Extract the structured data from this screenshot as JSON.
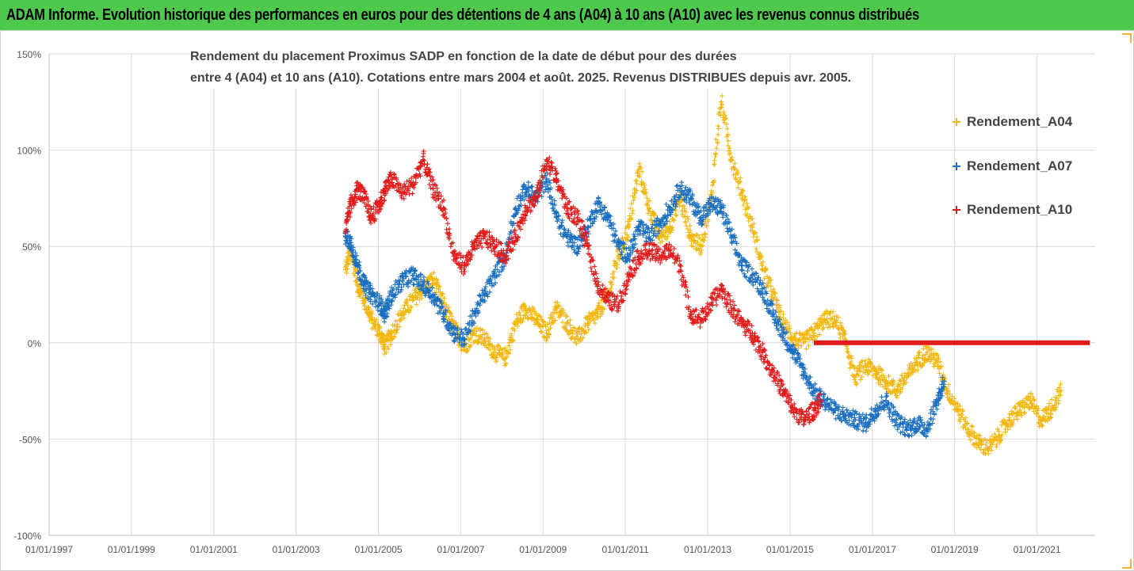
{
  "header": {
    "banner_text": "ADAM Informe. Evolution historique des performances en euros pour des détentions de 4 ans (A04) à 10 ans (A10) avec les revenus connus distribués"
  },
  "chart_data": {
    "type": "scatter",
    "title_lines": [
      "Rendement du placement Proximus SADP en fonction de la date de début pour des durées",
      "entre 4 (A04) et 10 ans (A10). Cotations entre mars 2004 et août. 2025. Revenus DISTRIBUES depuis avr. 2005."
    ],
    "xlabel": "",
    "ylabel": "",
    "x_ticks": [
      "01/01/1997",
      "01/01/1999",
      "01/01/2001",
      "01/01/2003",
      "01/01/2005",
      "01/01/2007",
      "01/01/2009",
      "01/01/2011",
      "01/01/2013",
      "01/01/2015",
      "01/01/2017",
      "01/01/2019",
      "01/01/2021"
    ],
    "x_range": [
      "1997-01-01",
      "2022-06-01"
    ],
    "y_ticks": [
      "-100%",
      "-50%",
      "0%",
      "50%",
      "100%",
      "150%"
    ],
    "y_tick_values": [
      -100,
      -50,
      0,
      50,
      100,
      150
    ],
    "y_range": [
      -100,
      150
    ],
    "grid": "horizontal and vertical",
    "legend_position": "right",
    "series": [
      {
        "name": "Rendement_A04",
        "color": "#f2b711",
        "points": [
          [
            "2004-03-15",
            38
          ],
          [
            "2004-05-01",
            48
          ],
          [
            "2004-07-01",
            30
          ],
          [
            "2004-09-01",
            22
          ],
          [
            "2004-11-01",
            12
          ],
          [
            "2005-01-15",
            5
          ],
          [
            "2005-03-01",
            -2
          ],
          [
            "2005-05-01",
            5
          ],
          [
            "2005-08-01",
            15
          ],
          [
            "2005-11-01",
            22
          ],
          [
            "2006-02-01",
            28
          ],
          [
            "2006-05-01",
            33
          ],
          [
            "2006-08-01",
            20
          ],
          [
            "2006-11-01",
            8
          ],
          [
            "2007-02-01",
            -2
          ],
          [
            "2007-05-01",
            5
          ],
          [
            "2007-08-01",
            2
          ],
          [
            "2007-11-01",
            -5
          ],
          [
            "2008-02-01",
            -8
          ],
          [
            "2008-05-01",
            10
          ],
          [
            "2008-08-01",
            18
          ],
          [
            "2008-11-01",
            12
          ],
          [
            "2009-02-01",
            5
          ],
          [
            "2009-05-01",
            18
          ],
          [
            "2009-08-01",
            10
          ],
          [
            "2009-11-01",
            2
          ],
          [
            "2010-02-01",
            10
          ],
          [
            "2010-05-01",
            15
          ],
          [
            "2010-08-01",
            25
          ],
          [
            "2010-11-01",
            45
          ],
          [
            "2011-02-01",
            60
          ],
          [
            "2011-05-01",
            90
          ],
          [
            "2011-08-01",
            70
          ],
          [
            "2011-11-01",
            55
          ],
          [
            "2012-02-01",
            60
          ],
          [
            "2012-05-01",
            75
          ],
          [
            "2012-08-01",
            55
          ],
          [
            "2012-11-01",
            50
          ],
          [
            "2013-02-01",
            75
          ],
          [
            "2013-05-01",
            125
          ],
          [
            "2013-08-01",
            95
          ],
          [
            "2013-11-01",
            78
          ],
          [
            "2014-02-01",
            60
          ],
          [
            "2014-05-01",
            40
          ],
          [
            "2014-08-01",
            25
          ],
          [
            "2014-11-01",
            10
          ],
          [
            "2015-02-01",
            2
          ],
          [
            "2015-05-01",
            0
          ],
          [
            "2015-08-01",
            5
          ],
          [
            "2015-11-01",
            12
          ],
          [
            "2016-02-01",
            12
          ],
          [
            "2016-05-01",
            2
          ],
          [
            "2016-08-01",
            -18
          ],
          [
            "2016-11-01",
            -12
          ],
          [
            "2017-02-01",
            -15
          ],
          [
            "2017-05-01",
            -20
          ],
          [
            "2017-08-01",
            -25
          ],
          [
            "2017-11-01",
            -18
          ],
          [
            "2018-02-01",
            -10
          ],
          [
            "2018-05-01",
            -5
          ],
          [
            "2018-08-01",
            -10
          ],
          [
            "2018-11-01",
            -25
          ],
          [
            "2019-02-01",
            -35
          ],
          [
            "2019-05-01",
            -45
          ],
          [
            "2019-08-01",
            -52
          ],
          [
            "2019-11-01",
            -55
          ],
          [
            "2020-02-01",
            -48
          ],
          [
            "2020-05-01",
            -40
          ],
          [
            "2020-08-01",
            -35
          ],
          [
            "2020-11-01",
            -30
          ],
          [
            "2021-02-01",
            -40
          ],
          [
            "2021-05-01",
            -35
          ],
          [
            "2021-08-01",
            -25
          ]
        ]
      },
      {
        "name": "Rendement_A07",
        "color": "#1a6fc0",
        "points": [
          [
            "2004-03-15",
            55
          ],
          [
            "2004-05-01",
            52
          ],
          [
            "2004-07-01",
            40
          ],
          [
            "2004-09-01",
            30
          ],
          [
            "2004-11-01",
            25
          ],
          [
            "2005-01-15",
            20
          ],
          [
            "2005-03-01",
            15
          ],
          [
            "2005-05-01",
            25
          ],
          [
            "2005-08-01",
            32
          ],
          [
            "2005-11-01",
            35
          ],
          [
            "2006-02-01",
            30
          ],
          [
            "2006-05-01",
            25
          ],
          [
            "2006-08-01",
            15
          ],
          [
            "2006-11-01",
            5
          ],
          [
            "2007-02-01",
            2
          ],
          [
            "2007-05-01",
            15
          ],
          [
            "2007-08-01",
            25
          ],
          [
            "2007-11-01",
            35
          ],
          [
            "2008-02-01",
            45
          ],
          [
            "2008-05-01",
            70
          ],
          [
            "2008-08-01",
            80
          ],
          [
            "2008-11-01",
            75
          ],
          [
            "2009-02-01",
            85
          ],
          [
            "2009-05-01",
            65
          ],
          [
            "2009-08-01",
            55
          ],
          [
            "2009-11-01",
            50
          ],
          [
            "2010-02-01",
            60
          ],
          [
            "2010-05-01",
            72
          ],
          [
            "2010-08-01",
            65
          ],
          [
            "2010-11-01",
            50
          ],
          [
            "2011-02-01",
            45
          ],
          [
            "2011-05-01",
            60
          ],
          [
            "2011-08-01",
            55
          ],
          [
            "2011-11-01",
            62
          ],
          [
            "2012-02-01",
            70
          ],
          [
            "2012-05-01",
            80
          ],
          [
            "2012-08-01",
            75
          ],
          [
            "2012-11-01",
            65
          ],
          [
            "2013-02-01",
            72
          ],
          [
            "2013-05-01",
            70
          ],
          [
            "2013-08-01",
            55
          ],
          [
            "2013-11-01",
            40
          ],
          [
            "2014-02-01",
            35
          ],
          [
            "2014-05-01",
            28
          ],
          [
            "2014-08-01",
            15
          ],
          [
            "2014-11-01",
            5
          ],
          [
            "2015-02-01",
            -5
          ],
          [
            "2015-05-01",
            -15
          ],
          [
            "2015-08-01",
            -25
          ],
          [
            "2015-11-01",
            -30
          ],
          [
            "2016-02-01",
            -35
          ],
          [
            "2016-05-01",
            -38
          ],
          [
            "2016-08-01",
            -40
          ],
          [
            "2016-11-01",
            -42
          ],
          [
            "2017-02-01",
            -35
          ],
          [
            "2017-05-01",
            -30
          ],
          [
            "2017-08-01",
            -40
          ],
          [
            "2017-11-01",
            -45
          ],
          [
            "2018-02-01",
            -42
          ],
          [
            "2018-05-01",
            -45
          ],
          [
            "2018-08-01",
            -30
          ],
          [
            "2018-10-01",
            -20
          ]
        ]
      },
      {
        "name": "Rendement_A10",
        "color": "#e41b1b",
        "points": [
          [
            "2004-03-15",
            58
          ],
          [
            "2004-05-01",
            72
          ],
          [
            "2004-07-01",
            80
          ],
          [
            "2004-09-01",
            75
          ],
          [
            "2004-11-01",
            65
          ],
          [
            "2005-01-15",
            72
          ],
          [
            "2005-03-01",
            80
          ],
          [
            "2005-05-01",
            85
          ],
          [
            "2005-08-01",
            78
          ],
          [
            "2005-11-01",
            82
          ],
          [
            "2006-02-01",
            95
          ],
          [
            "2006-05-01",
            80
          ],
          [
            "2006-08-01",
            70
          ],
          [
            "2006-11-01",
            45
          ],
          [
            "2007-02-01",
            40
          ],
          [
            "2007-05-01",
            50
          ],
          [
            "2007-08-01",
            55
          ],
          [
            "2007-11-01",
            50
          ],
          [
            "2008-02-01",
            45
          ],
          [
            "2008-05-01",
            55
          ],
          [
            "2008-08-01",
            70
          ],
          [
            "2008-11-01",
            75
          ],
          [
            "2009-02-01",
            95
          ],
          [
            "2009-05-01",
            85
          ],
          [
            "2009-08-01",
            70
          ],
          [
            "2009-11-01",
            65
          ],
          [
            "2010-02-01",
            50
          ],
          [
            "2010-05-01",
            30
          ],
          [
            "2010-08-01",
            22
          ],
          [
            "2010-11-01",
            20
          ],
          [
            "2011-02-01",
            35
          ],
          [
            "2011-05-01",
            45
          ],
          [
            "2011-08-01",
            48
          ],
          [
            "2011-11-01",
            45
          ],
          [
            "2012-02-01",
            48
          ],
          [
            "2012-05-01",
            40
          ],
          [
            "2012-08-01",
            15
          ],
          [
            "2012-11-01",
            12
          ],
          [
            "2013-02-01",
            20
          ],
          [
            "2013-05-01",
            28
          ],
          [
            "2013-08-01",
            18
          ],
          [
            "2013-11-01",
            10
          ],
          [
            "2014-02-01",
            5
          ],
          [
            "2014-05-01",
            -5
          ],
          [
            "2014-08-01",
            -15
          ],
          [
            "2014-11-01",
            -25
          ],
          [
            "2015-02-01",
            -35
          ],
          [
            "2015-05-01",
            -40
          ],
          [
            "2015-08-01",
            -35
          ],
          [
            "2015-10-01",
            -30
          ]
        ],
        "flat_segment": {
          "from": "2015-08-01",
          "to": "2022-04-15",
          "value": 0
        }
      }
    ]
  }
}
